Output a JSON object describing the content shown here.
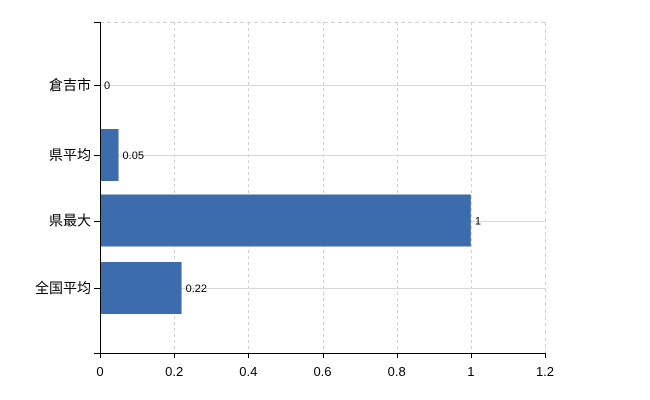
{
  "chart_data": {
    "type": "bar",
    "orientation": "horizontal",
    "title": "",
    "xlabel": "",
    "ylabel": "",
    "categories": [
      "倉吉市",
      "県平均",
      "県最大",
      "全国平均"
    ],
    "values": [
      0,
      0.05,
      1,
      0.22
    ],
    "value_labels": [
      "0",
      "0.05",
      "1",
      "0.22"
    ],
    "xlim": [
      0,
      1.2
    ],
    "x_ticks": [
      0,
      0.2,
      0.4,
      0.6,
      0.8,
      1,
      1.2
    ],
    "x_tick_labels": [
      "0",
      "0.2",
      "0.4",
      "0.6",
      "0.8",
      "1",
      "1.2"
    ],
    "grid": true,
    "legend": null,
    "colors": {
      "bar": "#3d6cac",
      "grid_solid": "#d9d9d9",
      "grid_dashed": "#cfcfcf",
      "axis": "#000000",
      "text": "#000000",
      "background": "#ffffff"
    }
  }
}
